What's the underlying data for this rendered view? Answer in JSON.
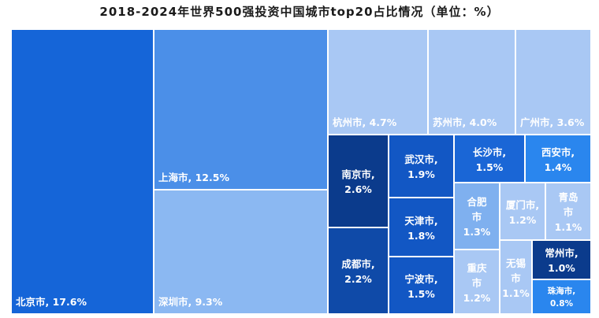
{
  "chart_data": {
    "type": "treemap",
    "title": "2018-2024年世界500强投资中国城市top20占比情况（单位：%）",
    "unit": "%",
    "items": [
      {
        "name": "北京市",
        "value": 17.6,
        "label": "北京市, 17.6%",
        "color": "#1565d8"
      },
      {
        "name": "上海市",
        "value": 12.5,
        "label": "上海市, 12.5%",
        "color": "#4b8fe8"
      },
      {
        "name": "深圳市",
        "value": 9.3,
        "label": "深圳市, 9.3%",
        "color": "#8bb8f2"
      },
      {
        "name": "杭州市",
        "value": 4.7,
        "label": "杭州市, 4.7%",
        "color": "#a9c8f4"
      },
      {
        "name": "苏州市",
        "value": 4.0,
        "label": "苏州市, 4.0%",
        "color": "#a9c8f4"
      },
      {
        "name": "广州市",
        "value": 3.6,
        "label": "广州市, 3.6%",
        "color": "#a9c8f4"
      },
      {
        "name": "南京市",
        "value": 2.6,
        "label": "南京市, 2.6%",
        "color": "#0b3b8c"
      },
      {
        "name": "成都市",
        "value": 2.2,
        "label": "成都市, 2.2%",
        "color": "#0f4aa8"
      },
      {
        "name": "武汉市",
        "value": 1.9,
        "label": "武汉市, 1.9%",
        "color": "#1257c4"
      },
      {
        "name": "天津市",
        "value": 1.8,
        "label": "天津市, 1.8%",
        "color": "#1257c4"
      },
      {
        "name": "宁波市",
        "value": 1.5,
        "label": "宁波市, 1.5%",
        "color": "#1257c4"
      },
      {
        "name": "长沙市",
        "value": 1.5,
        "label": "长沙市, 1.5%",
        "color": "#1a66d6"
      },
      {
        "name": "西安市",
        "value": 1.4,
        "label": "西安市, 1.4%",
        "color": "#2a86ee"
      },
      {
        "name": "合肥市",
        "value": 1.3,
        "label": "合肥市, 1.3%",
        "color": "#7fb0ef"
      },
      {
        "name": "厦门市",
        "value": 1.2,
        "label": "厦门市, 1.2%",
        "color": "#a9c8f4"
      },
      {
        "name": "青岛市",
        "value": 1.1,
        "label": "青岛市, 1.1%",
        "color": "#a9c8f4"
      },
      {
        "name": "重庆市",
        "value": 1.2,
        "label": "重庆市, 1.2%",
        "color": "#a9c8f4"
      },
      {
        "name": "无锡市",
        "value": 1.1,
        "label": "无锡市, 1.1%",
        "color": "#a9c8f4"
      },
      {
        "name": "常州市",
        "value": 1.0,
        "label": "常州市, 1.0%",
        "color": "#0b3b8c"
      },
      {
        "name": "珠海市",
        "value": 0.8,
        "label": "珠海市, 0.8%",
        "color": "#2a86ee"
      }
    ]
  }
}
